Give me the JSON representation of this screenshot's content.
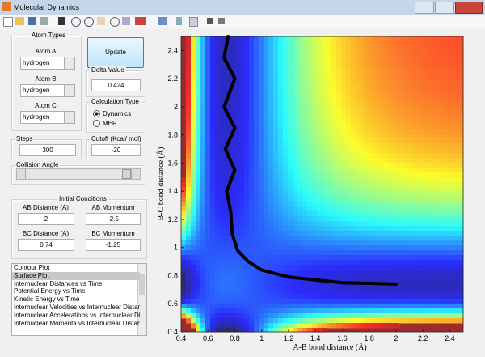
{
  "window": {
    "title": "Molecular Dynamics"
  },
  "atom_types": {
    "title": "Atom Types",
    "atoms": [
      {
        "label": "Atom A",
        "value": "hydrogen"
      },
      {
        "label": "Atom B",
        "value": "hydrogen"
      },
      {
        "label": "Atom C",
        "value": "hydrogen"
      }
    ]
  },
  "update_button": "Update",
  "delta_value": {
    "title": "Delta Value",
    "value": "0.424"
  },
  "calculation_type": {
    "title": "Calculation Type",
    "options": [
      "Dynamics",
      "MEP"
    ],
    "selected": 0
  },
  "steps": {
    "title": "Steps",
    "value": "300"
  },
  "cutoff": {
    "title": "Cutoff (Kcal/ mol)",
    "value": "-20"
  },
  "collision_angle": {
    "title": "Collision Angle"
  },
  "initial_conditions": {
    "title": "Initial Conditions",
    "fields": [
      {
        "label": "AB Distance (A)",
        "value": "2"
      },
      {
        "label": "AB Momentum",
        "value": "-2.5"
      },
      {
        "label": "BC Distance (A)",
        "value": "0.74"
      },
      {
        "label": "BC Momentum",
        "value": "-1.25"
      }
    ]
  },
  "plot_list": {
    "items": [
      "Contour Plot",
      "Surface Plot",
      "Internuclear Distances vs Time",
      "Potential Energy vs Time",
      "Kinetic Energy vs Time",
      "Internuclear Velocities vs Internuclear Distance",
      "Internuclear Accelerations vs Internuclear Dista",
      "Internuclear Momenta vs Internuclear Distance"
    ],
    "selected": 1
  },
  "plot": {
    "x_label": "A-B bond distance (Å)",
    "y_label": "B-C bond distance (Å)",
    "xlim": [
      0.4,
      2.5
    ],
    "ylim": [
      0.4,
      2.5
    ],
    "xticks": [
      0.4,
      0.6,
      0.8,
      1,
      1.2,
      1.4,
      1.6,
      1.8,
      2,
      2.2,
      2.4
    ],
    "yticks": [
      0.4,
      0.6,
      0.8,
      1,
      1.2,
      1.4,
      1.6,
      1.8,
      2,
      2.2,
      2.4
    ],
    "trajectory": {
      "x": [
        0.75,
        0.72,
        0.8,
        0.72,
        0.8,
        0.73,
        0.8,
        0.74,
        0.77,
        0.78,
        0.82,
        0.9,
        1,
        1.2,
        1.4,
        1.6,
        1.8,
        2
      ],
      "y": [
        2.5,
        2.35,
        2.2,
        2,
        1.85,
        1.7,
        1.55,
        1.4,
        1.25,
        1.1,
        0.98,
        0.9,
        0.84,
        0.79,
        0.77,
        0.75,
        0.745,
        0.74
      ]
    }
  }
}
